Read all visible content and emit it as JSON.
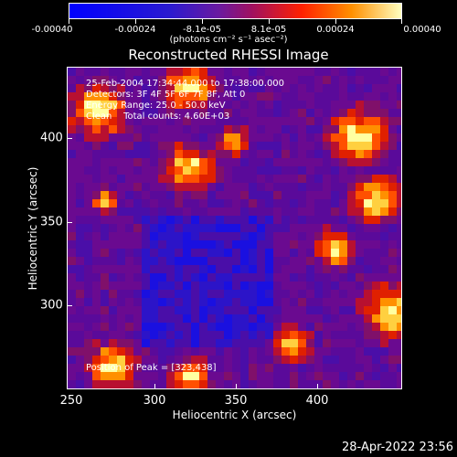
{
  "colorbar": {
    "labels": [
      "-0.00040",
      "-0.00024",
      "-8.1e-05",
      "8.1e-05",
      "0.00024",
      "0.00040"
    ],
    "unit": "(photons cm⁻² s⁻¹ asec⁻²)"
  },
  "title": "Reconstructed RHESSI Image",
  "info": {
    "line1": "25-Feb-2004 17:34:44.000 to 17:38:00.000",
    "line2": "Detectors: 3F 4F 5F 6F 7F 8F, Att 0",
    "line3": "Energy Range: 25.0 - 50.0 keV",
    "line4": "Clean    Total counts: 4.60E+03"
  },
  "peak": "Position of Peak = [323,438]",
  "axes": {
    "x_ticks": [
      "250",
      "300",
      "350",
      "400"
    ],
    "y_ticks": [
      "400",
      "350",
      "300"
    ],
    "xlabel": "Heliocentric X (arcsec)",
    "ylabel": "Heliocentric Y (arcsec)"
  },
  "timestamp": "28-Apr-2022 23:56",
  "colors": {
    "low": "#1a1aff",
    "mid": "#5a0a9a",
    "high": "#ff3300",
    "peak": "#ffff40"
  }
}
